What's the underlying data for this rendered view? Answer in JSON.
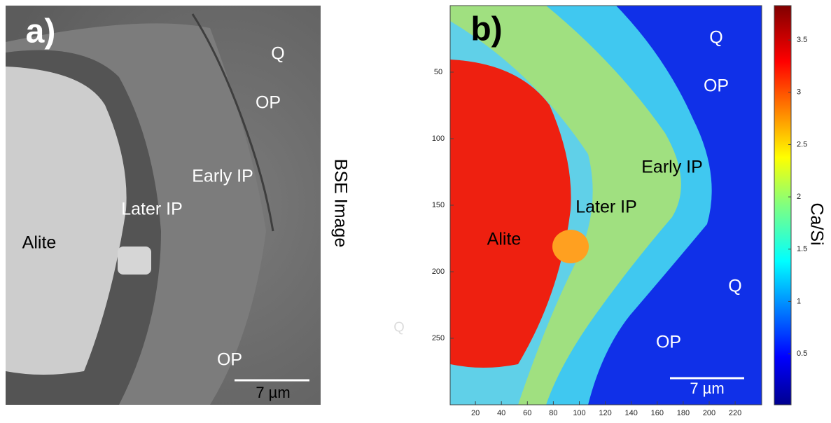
{
  "panel_a": {
    "label": "a)",
    "side_label": "BSE Image",
    "annotations": [
      "Q",
      "OP",
      "Early IP",
      "Later IP",
      "Alite",
      "OP"
    ],
    "scale_bar": "7 µm"
  },
  "stray_label": "Q",
  "panel_b": {
    "label": "b)",
    "annotations": [
      "Q",
      "OP",
      "Early IP",
      "Later IP",
      "Alite",
      "Q",
      "OP"
    ],
    "scale_bar": "7 µm",
    "xticks": [
      20,
      40,
      60,
      80,
      100,
      120,
      140,
      160,
      180,
      200,
      220
    ],
    "yticks": [
      50,
      100,
      150,
      200,
      250
    ],
    "colorbar": {
      "label": "Ca/Si",
      "ticks": [
        0.5,
        1,
        1.5,
        2,
        2.5,
        3,
        3.5
      ]
    }
  }
}
